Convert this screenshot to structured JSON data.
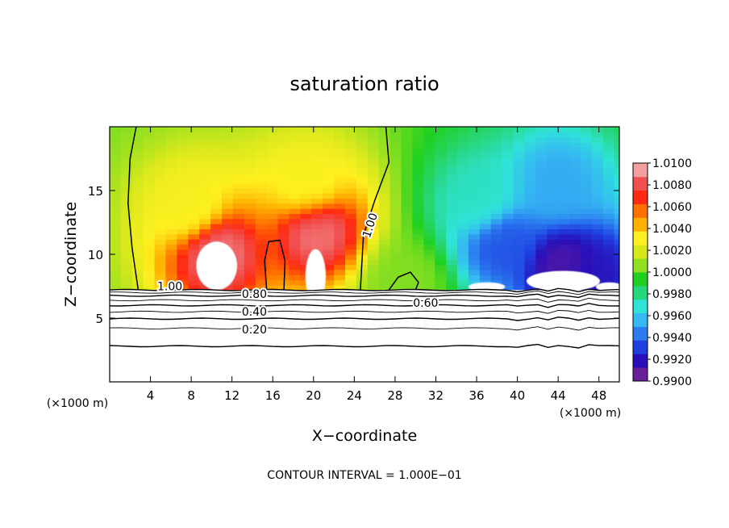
{
  "chart_data": {
    "type": "heatmap",
    "title": "saturation ratio",
    "xlabel": "X−coordinate",
    "ylabel": "Z−coordinate",
    "x_unit_left": "(×1000 m)",
    "x_unit_right": "(×1000 m)",
    "footer": "CONTOUR INTERVAL = 1.000E−01",
    "x_ticks": [
      4,
      8,
      12,
      16,
      20,
      24,
      28,
      32,
      36,
      40,
      44,
      48
    ],
    "y_ticks": [
      5,
      10,
      15
    ],
    "xlim": [
      0,
      50
    ],
    "ylim": [
      0,
      20
    ],
    "colorbar": {
      "min": 0.99,
      "max": 1.01,
      "tick_labels": [
        "1.0100",
        "1.0080",
        "1.0060",
        "1.0040",
        "1.0020",
        "1.0000",
        "0.9980",
        "0.9960",
        "0.9940",
        "0.9920",
        "0.9900"
      ],
      "colors": [
        "#6a1f9a",
        "#2a0fb8",
        "#1f3fe0",
        "#2b7cf0",
        "#36b9f2",
        "#2fe3d8",
        "#27d67a",
        "#20d020",
        "#8fe020",
        "#d6e81c",
        "#fff020",
        "#ffb000",
        "#ff7000",
        "#ff2a10",
        "#f05050",
        "#f4a0a0"
      ]
    },
    "contour_labels": [
      {
        "text": "1.00",
        "x": 5.9,
        "z": 7.5
      },
      {
        "text": "1.00",
        "x": 25.9,
        "z": 12.5
      },
      {
        "text": "0.80",
        "x": 14.2,
        "z": 6.9
      },
      {
        "text": "0.60",
        "x": 31.0,
        "z": 6.2
      },
      {
        "text": "0.40",
        "x": 14.2,
        "z": 5.5
      },
      {
        "text": "0.20",
        "x": 14.2,
        "z": 4.1
      }
    ],
    "contours_below_cloud_base_z": [
      7.2,
      7.0,
      6.75,
      6.4,
      6.0,
      5.5,
      4.95,
      4.2,
      2.8
    ],
    "cloud_base_z": 7.2,
    "blobs": [
      {
        "x": 10.5,
        "z": 10.2,
        "value": 1.0095
      },
      {
        "x": 8.0,
        "z": 13.5,
        "value": 1.003
      },
      {
        "x": 20.3,
        "z": 12.0,
        "value": 1.0095
      },
      {
        "x": 19.5,
        "z": 15.0,
        "value": 1.003
      },
      {
        "x": 29.0,
        "z": 7.8,
        "value": 1.0005
      },
      {
        "x": 36.5,
        "z": 14.0,
        "value": 0.997
      },
      {
        "x": 38.5,
        "z": 11.0,
        "value": 0.993
      },
      {
        "x": 44.5,
        "z": 9.0,
        "value": 0.9905
      },
      {
        "x": 47.5,
        "z": 8.2,
        "value": 0.9915
      },
      {
        "x": 44.0,
        "z": 15.5,
        "value": 0.995
      }
    ]
  }
}
